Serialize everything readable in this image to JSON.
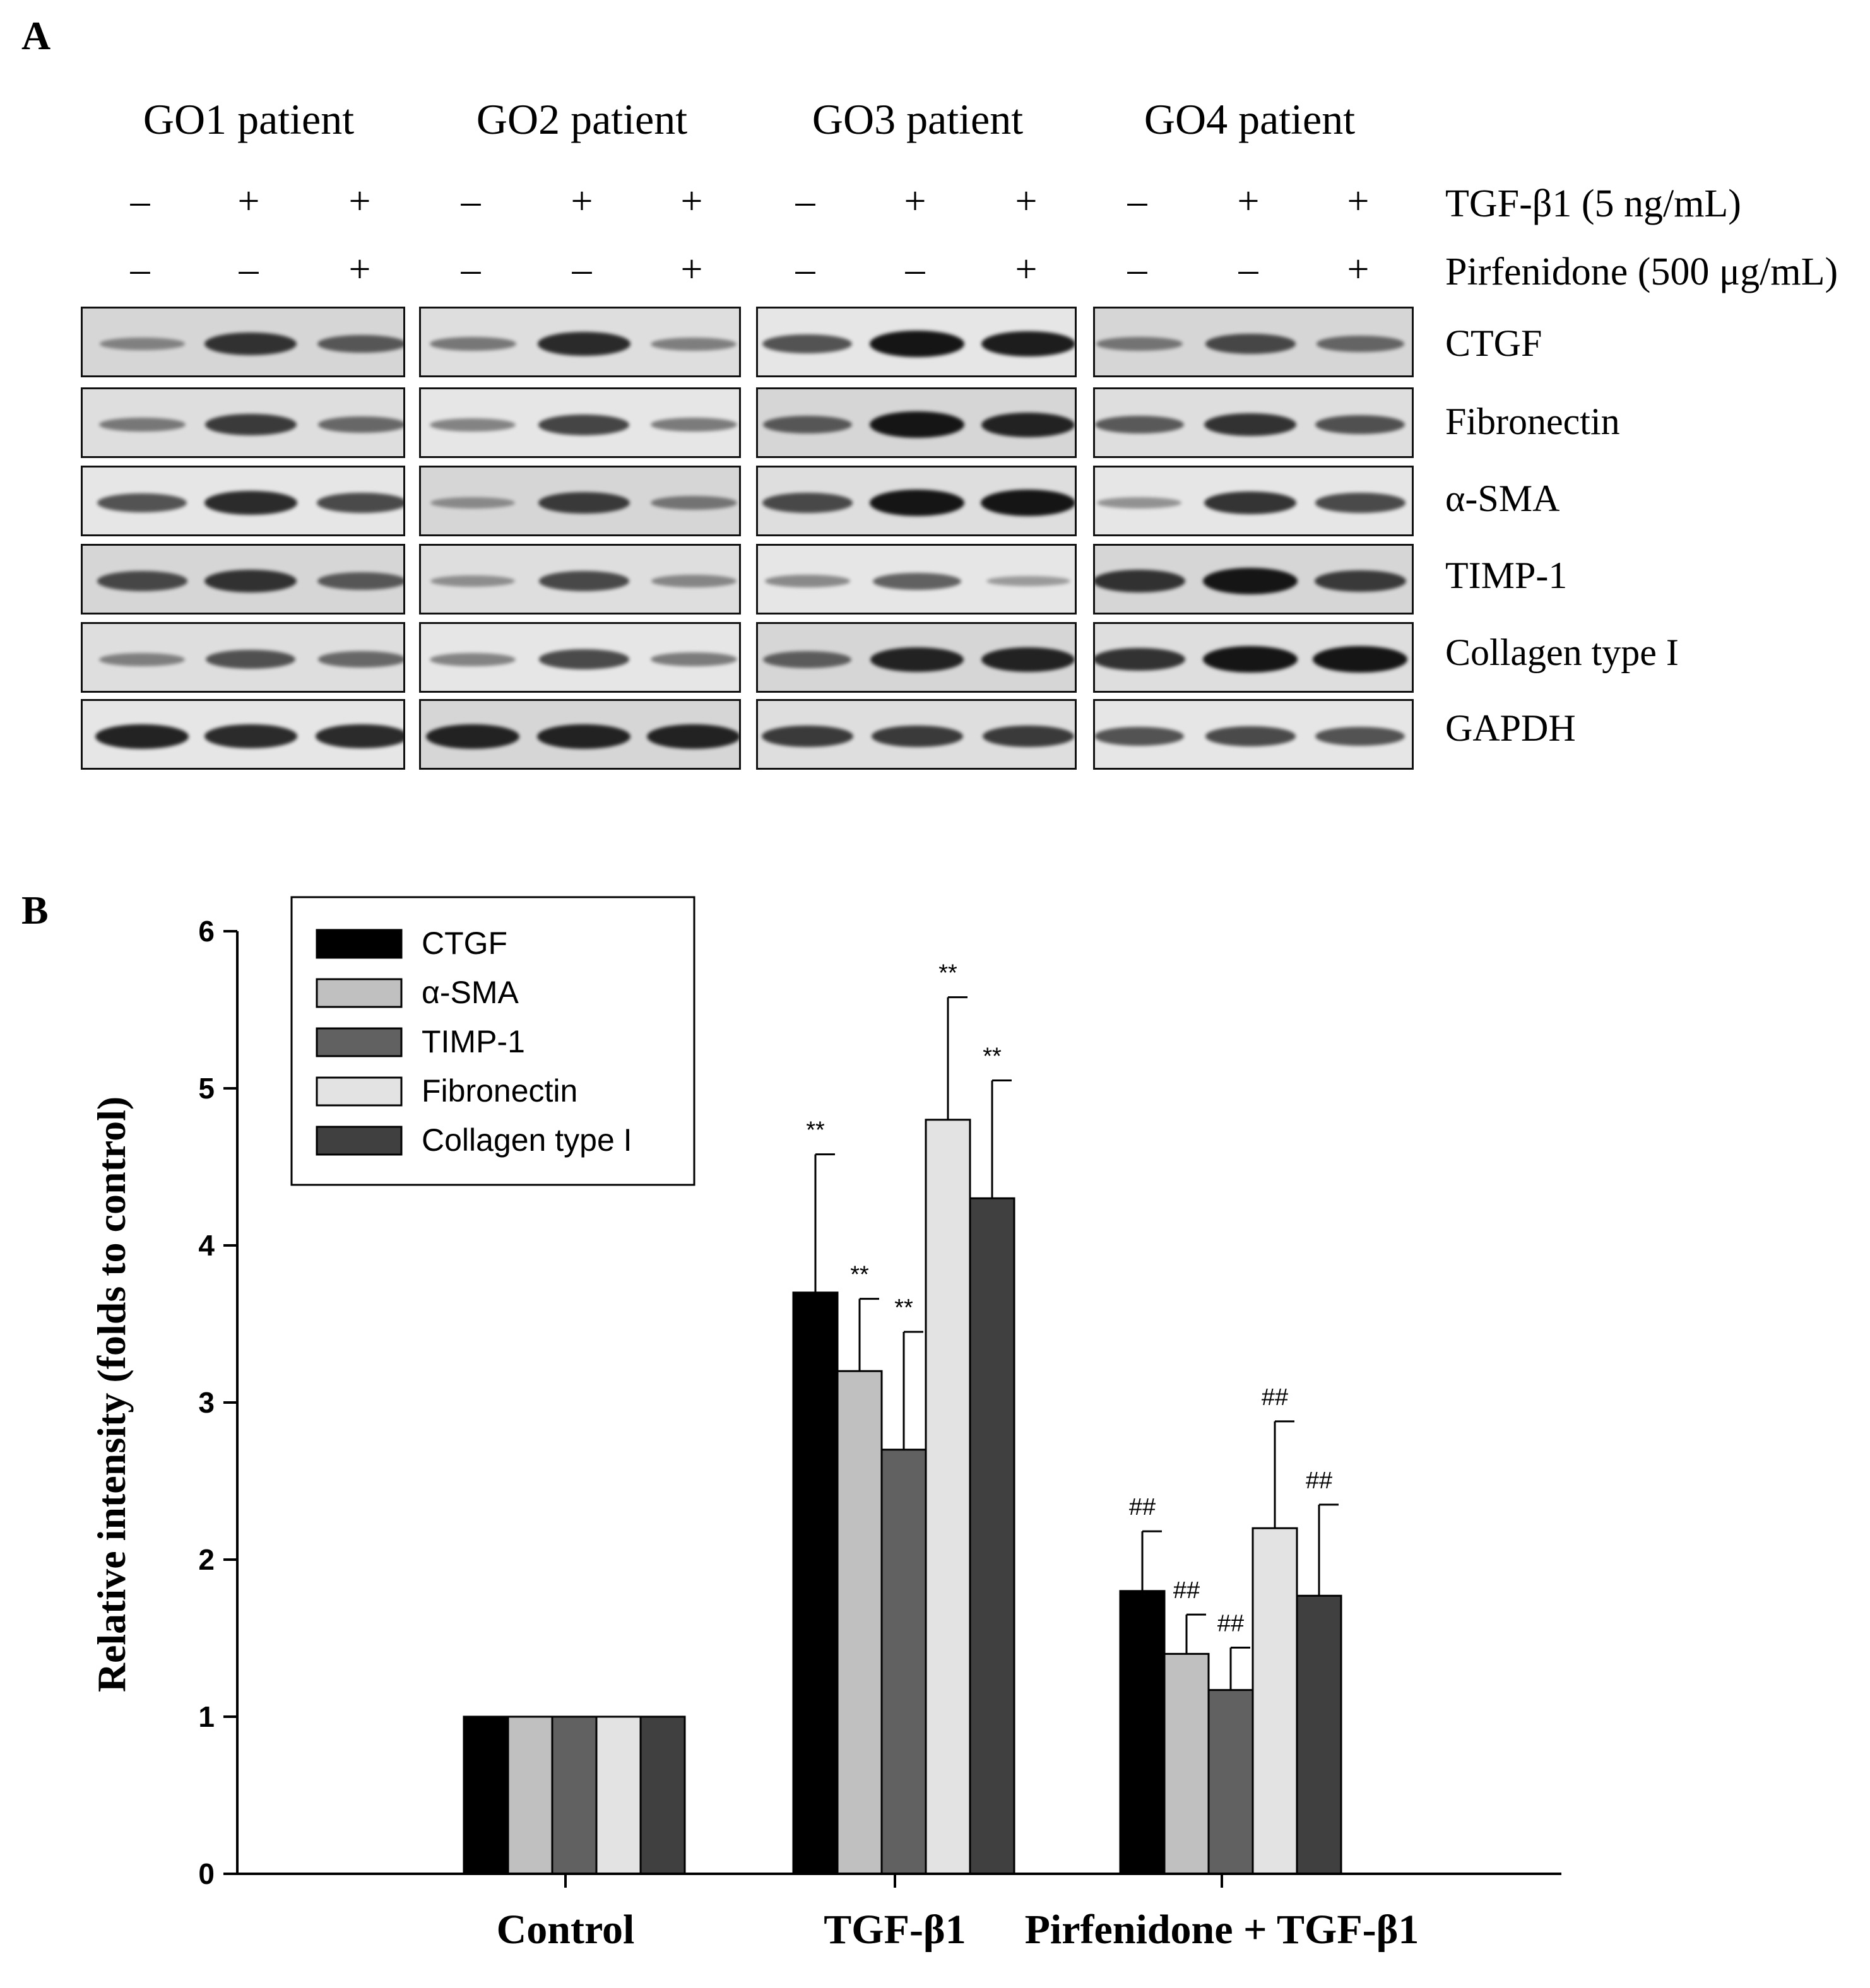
{
  "panel_a": {
    "letter": "A",
    "patients": [
      "GO1 patient",
      "GO2 patient",
      "GO3 patient",
      "GO4 patient"
    ],
    "treatments": [
      {
        "label": "TGF-β1 (5 ng/mL)",
        "signs": [
          "–",
          "+",
          "+"
        ]
      },
      {
        "label": "Pirfenidone (500 μg/mL)",
        "signs": [
          "–",
          "–",
          "+"
        ]
      }
    ],
    "proteins": [
      "CTGF",
      "Fibronectin",
      "α-SMA",
      "TIMP-1",
      "Collagen type I",
      "GAPDH"
    ],
    "band_intensity": [
      [
        [
          0.25,
          0.8,
          0.55
        ],
        [
          0.35,
          0.85,
          0.3
        ],
        [
          0.6,
          1.0,
          0.95
        ],
        [
          0.35,
          0.65,
          0.45
        ]
      ],
      [
        [
          0.35,
          0.75,
          0.45
        ],
        [
          0.3,
          0.7,
          0.35
        ],
        [
          0.55,
          1.0,
          0.9
        ],
        [
          0.55,
          0.8,
          0.6
        ]
      ],
      [
        [
          0.6,
          0.85,
          0.65
        ],
        [
          0.2,
          0.75,
          0.35
        ],
        [
          0.65,
          1.0,
          1.0
        ],
        [
          0.2,
          0.8,
          0.65
        ]
      ],
      [
        [
          0.65,
          0.8,
          0.55
        ],
        [
          0.2,
          0.65,
          0.25
        ],
        [
          0.25,
          0.5,
          0.15
        ],
        [
          0.8,
          1.0,
          0.75
        ]
      ],
      [
        [
          0.3,
          0.6,
          0.45
        ],
        [
          0.3,
          0.65,
          0.35
        ],
        [
          0.5,
          0.9,
          0.9
        ],
        [
          0.8,
          1.0,
          1.0
        ]
      ],
      [
        [
          0.9,
          0.85,
          0.85
        ],
        [
          0.9,
          0.9,
          0.9
        ],
        [
          0.75,
          0.75,
          0.75
        ],
        [
          0.6,
          0.65,
          0.6
        ]
      ]
    ]
  },
  "panel_b": {
    "letter": "B"
  },
  "chart_data": {
    "type": "bar",
    "categories": [
      "Control",
      "TGF-β1",
      "Pirfenidone + TGF-β1"
    ],
    "ylabel": "Relative intensity (folds to control)",
    "xlabel": "",
    "ylim": [
      0,
      6
    ],
    "yticks": [
      0,
      1,
      2,
      3,
      4,
      5,
      6
    ],
    "legend_position": "top-left",
    "series": [
      {
        "name": "CTGF",
        "color": "#000000",
        "values": [
          1.0,
          3.7,
          1.8
        ],
        "errors": [
          0,
          0.88,
          0.38
        ],
        "annotations": [
          "",
          "**",
          "##"
        ]
      },
      {
        "name": "α-SMA",
        "color": "#c0c0c0",
        "values": [
          1.0,
          3.2,
          1.4
        ],
        "errors": [
          0,
          0.46,
          0.25
        ],
        "annotations": [
          "",
          "**",
          "##"
        ]
      },
      {
        "name": "TIMP-1",
        "color": "#616161",
        "values": [
          1.0,
          2.7,
          1.17
        ],
        "errors": [
          0,
          0.75,
          0.27
        ],
        "annotations": [
          "",
          "**",
          "##"
        ]
      },
      {
        "name": "Fibronectin",
        "color": "#e3e3e3",
        "values": [
          1.0,
          4.8,
          2.2
        ],
        "errors": [
          0,
          0.78,
          0.68
        ],
        "annotations": [
          "",
          "**",
          "##"
        ]
      },
      {
        "name": "Collagen type I",
        "color": "#404040",
        "values": [
          1.0,
          4.3,
          1.77
        ],
        "errors": [
          0,
          0.75,
          0.58
        ],
        "annotations": [
          "",
          "**",
          "##"
        ]
      }
    ]
  }
}
